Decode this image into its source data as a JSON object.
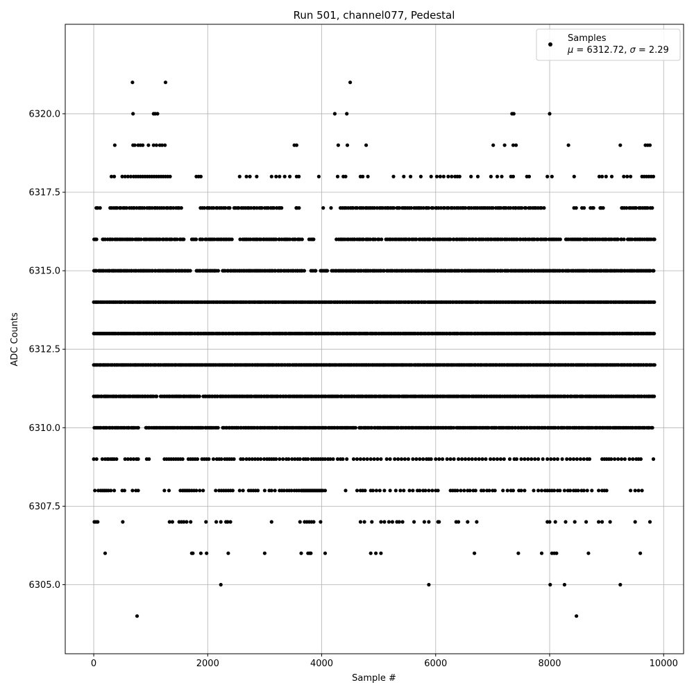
{
  "chart_data": {
    "type": "scatter",
    "title": "Run 501, channel077, Pedestal",
    "xlabel": "Sample #",
    "ylabel": "ADC Counts",
    "xlim": [
      -500,
      10350
    ],
    "ylim": [
      6302.8,
      6322.85
    ],
    "grid": true,
    "legend_placement": "top-right",
    "marker_color": "#000000",
    "legend": {
      "series_label": "Samples",
      "stats_line": {
        "mu_symbol": "μ",
        "mu_text": " = 6312.72, ",
        "sigma_symbol": "σ",
        "sigma_text": " = 2.29"
      }
    },
    "x_ticks": [
      {
        "value": 0,
        "label": "0"
      },
      {
        "value": 2000,
        "label": "2000"
      },
      {
        "value": 4000,
        "label": "4000"
      },
      {
        "value": 6000,
        "label": "6000"
      },
      {
        "value": 8000,
        "label": "8000"
      },
      {
        "value": 10000,
        "label": "10000"
      }
    ],
    "y_ticks": [
      {
        "value": 6305.0,
        "label": "6305.0"
      },
      {
        "value": 6307.5,
        "label": "6307.5"
      },
      {
        "value": 6310.0,
        "label": "6310.0"
      },
      {
        "value": 6312.5,
        "label": "6312.5"
      },
      {
        "value": 6315.0,
        "label": "6315.0"
      },
      {
        "value": 6317.5,
        "label": "6317.5"
      },
      {
        "value": 6320.0,
        "label": "6320.0"
      }
    ],
    "series": [
      {
        "name": "Samples",
        "x_range": [
          0,
          9840
        ],
        "levels": [
          {
            "y": 6321,
            "x": [
              680,
              1260,
              4500
            ]
          },
          {
            "y": 6320,
            "x": [
              690,
              1050,
              1080,
              1120,
              4230,
              4440,
              7340,
              7370,
              8000
            ]
          },
          {
            "y": 6319,
            "x": [
              370,
              690,
              720,
              780,
              820,
              860,
              960,
              1050,
              1100,
              1160,
              1200,
              1250,
              3520,
              3560,
              4290,
              4450,
              4780,
              7010,
              7210,
              7360,
              7410,
              8330,
              9240,
              9680,
              9720,
              9760
            ]
          },
          {
            "y": 6318,
            "x": [
              310,
              360,
              500,
              550,
              600,
              650,
              700,
              740,
              780,
              820,
              860,
              900,
              940,
              980,
              1020,
              1060,
              1100,
              1140,
              1180,
              1220,
              1260,
              1300,
              1340,
              1800,
              1840,
              1880,
              2560,
              2680,
              2740,
              2860,
              3120,
              3200,
              3260,
              3350,
              3440,
              3560,
              3600,
              3950,
              4280,
              4380,
              4420,
              4680,
              4720,
              4810,
              5260,
              5440,
              5560,
              5740,
              5920,
              6020,
              6080,
              6140,
              6220,
              6280,
              6340,
              6380,
              6420,
              6620,
              6740,
              6970,
              7080,
              7160,
              7320,
              7360,
              7600,
              7640,
              7960,
              8040,
              8430,
              8870,
              8920,
              8990,
              9090,
              9300,
              9360,
              9420,
              9620,
              9660,
              9700,
              9740,
              9780,
              9820
            ]
          },
          {
            "y": 6317,
            "type": "band",
            "x_from": 40,
            "x_to": 9830,
            "step": 34,
            "gaps": [
              [
                140,
                280
              ],
              [
                1560,
                1860
              ],
              [
                2400,
                2460
              ],
              [
                3300,
                3520
              ],
              [
                3620,
                4020
              ],
              [
                4060,
                4140
              ],
              [
                4180,
                4300
              ],
              [
                7920,
                8420
              ],
              [
                8500,
                8560
              ],
              [
                8620,
                8700
              ],
              [
                8780,
                8880
              ],
              [
                8940,
                9260
              ]
            ]
          },
          {
            "y": 6316,
            "type": "band",
            "x_from": 0,
            "x_to": 9840,
            "step": 30,
            "gaps": [
              [
                100,
                150
              ],
              [
                1600,
                1690
              ],
              [
                1800,
                1830
              ],
              [
                2450,
                2560
              ],
              [
                3680,
                3760
              ],
              [
                3870,
                4250
              ],
              [
                5060,
                5120
              ],
              [
                8190,
                8260
              ],
              [
                9330,
                9350
              ]
            ]
          },
          {
            "y": 6315,
            "type": "band",
            "x_from": 0,
            "x_to": 9840,
            "step": 26,
            "gaps": [
              [
                1700,
                1780
              ],
              [
                2200,
                2240
              ],
              [
                3700,
                3800
              ],
              [
                3900,
                3960
              ],
              [
                4120,
                4160
              ],
              [
                5100,
                5140
              ]
            ]
          },
          {
            "y": 6314,
            "type": "band",
            "x_from": 0,
            "x_to": 9850,
            "step": 22,
            "gaps": []
          },
          {
            "y": 6313,
            "type": "band",
            "x_from": 0,
            "x_to": 9850,
            "step": 22,
            "gaps": []
          },
          {
            "y": 6312,
            "type": "band",
            "x_from": 0,
            "x_to": 9850,
            "step": 22,
            "gaps": []
          },
          {
            "y": 6311,
            "type": "band",
            "x_from": 0,
            "x_to": 9850,
            "step": 24,
            "gaps": [
              [
                1120,
                1170
              ],
              [
                1860,
                1920
              ]
            ]
          },
          {
            "y": 6310,
            "type": "band",
            "x_from": 0,
            "x_to": 9820,
            "step": 26,
            "gaps": [
              [
                800,
                900
              ],
              [
                2200,
                2240
              ],
              [
                4600,
                4640
              ],
              [
                6320,
                6360
              ]
            ]
          },
          {
            "y": 6309,
            "x": [
              0,
              50,
              150,
              200,
              240,
              260,
              300,
              330,
              360,
              400,
              550,
              600,
              650,
              700,
              750,
              780,
              930,
              970,
              1240,
              1280,
              1320,
              1360,
              1400,
              1440,
              1480,
              1520,
              1560,
              1660,
              1700,
              1740,
              1780,
              1820,
              1900,
              1940,
              1980,
              2020,
              2100,
              2160,
              2200,
              2240,
              2300,
              2340,
              2380,
              2420,
              2460,
              2580,
              2620,
              2680,
              2730,
              2780,
              2830,
              2880,
              2930,
              2990,
              3040,
              3080,
              3120,
              3160,
              3200,
              3260,
              3320,
              3380,
              3420,
              3480,
              3530,
              3580,
              3620,
              3680,
              3720,
              3760,
              3820,
              3860,
              3900,
              3940,
              3980,
              4020,
              4060,
              4110,
              4150,
              4200,
              4280,
              4330,
              4370,
              4440,
              4560,
              4620,
              4680,
              4740,
              4800,
              4860,
              4920,
              4980,
              5040,
              5140,
              5200,
              5280,
              5340,
              5400,
              5460,
              5520,
              5600,
              5660,
              5720,
              5780,
              5840,
              5880,
              5920,
              6000,
              6060,
              6120,
              6200,
              6260,
              6320,
              6400,
              6460,
              6520,
              6580,
              6640,
              6700,
              6760,
              6820,
              6880,
              6960,
              7020,
              7080,
              7140,
              7200,
              7300,
              7380,
              7420,
              7500,
              7560,
              7620,
              7680,
              7740,
              7800,
              7880,
              7960,
              8020,
              8080,
              8140,
              8220,
              8300,
              8360,
              8420,
              8480,
              8540,
              8600,
              8660,
              8700,
              8920,
              8960,
              9000,
              9040,
              9080,
              9140,
              9200,
              9260,
              9320,
              9400,
              9460,
              9520,
              9560,
              9600,
              9820
            ]
          },
          {
            "y": 6308,
            "x": [
              20,
              80,
              120,
              150,
              180,
              200,
              230,
              260,
              300,
              360,
              500,
              540,
              680,
              740,
              780,
              1240,
              1320,
              1520,
              1560,
              1590,
              1620,
              1650,
              1680,
              1720,
              1760,
              1800,
              1860,
              1920,
              2140,
              2200,
              2240,
              2280,
              2320,
              2360,
              2400,
              2440,
              2560,
              2620,
              2720,
              2760,
              2800,
              2840,
              2880,
              3000,
              3080,
              3120,
              3180,
              3260,
              3300,
              3340,
              3390,
              3430,
              3470,
              3520,
              3560,
              3600,
              3640,
              3660,
              3680,
              3700,
              3720,
              3740,
              3760,
              3780,
              3800,
              3820,
              3840,
              3860,
              3880,
              3900,
              3920,
              3940,
              3960,
              3980,
              4000,
              4020,
              4060,
              4420,
              4620,
              4680,
              4720,
              4760,
              4860,
              4900,
              4960,
              5020,
              5100,
              5200,
              5300,
              5380,
              5440,
              5540,
              5600,
              5680,
              5720,
              5780,
              5820,
              5880,
              5940,
              6000,
              6040,
              6260,
              6300,
              6340,
              6380,
              6440,
              6500,
              6560,
              6600,
              6660,
              6700,
              6800,
              6840,
              6900,
              6940,
              7000,
              7040,
              7180,
              7260,
              7320,
              7360,
              7460,
              7500,
              7560,
              7720,
              7800,
              7860,
              7920,
              7960,
              8000,
              8040,
              8080,
              8140,
              8180,
              8260,
              8320,
              8360,
              8420,
              8460,
              8500,
              8560,
              8600,
              8660,
              8740,
              8860,
              8920,
              8960,
              9000,
              9420,
              9500,
              9560,
              9620
            ]
          },
          {
            "y": 6307,
            "x": [
              10,
              40,
              70,
              510,
              1330,
              1380,
              1500,
              1540,
              1580,
              1630,
              1700,
              1970,
              2150,
              2230,
              2320,
              2350,
              2400,
              3120,
              3620,
              3700,
              3740,
              3780,
              3820,
              3860,
              3980,
              4680,
              4750,
              4880,
              5040,
              5100,
              5180,
              5240,
              5320,
              5360,
              5420,
              5620,
              5800,
              5880,
              6040,
              6060,
              6360,
              6400,
              6560,
              6720,
              7960,
              8000,
              8100,
              8280,
              8440,
              8640,
              8860,
              8920,
              9060,
              9500,
              9760
            ]
          },
          {
            "y": 6306,
            "x": [
              200,
              1720,
              1740,
              1880,
              1980,
              2360,
              3000,
              3640,
              3760,
              3790,
              3810,
              4060,
              4860,
              4950,
              5040,
              6680,
              7450,
              7860,
              8040,
              8080,
              8120,
              8680,
              9590
            ]
          },
          {
            "y": 6305,
            "x": [
              2230,
              5880,
              8010,
              8260,
              9240
            ]
          },
          {
            "y": 6304,
            "x": [
              760,
              8470
            ]
          }
        ]
      }
    ]
  }
}
